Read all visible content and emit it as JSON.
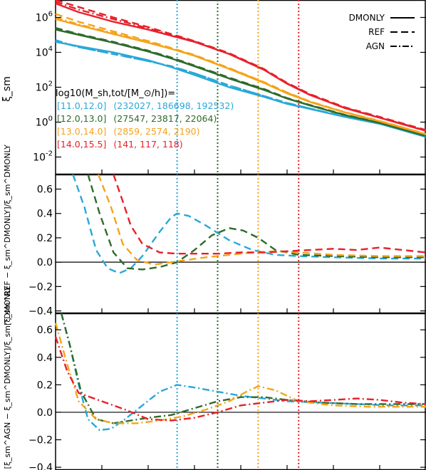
{
  "legend": {
    "entries": [
      {
        "label": "DMONLY",
        "dash": "solid"
      },
      {
        "label": "REF",
        "dash": "dashed"
      },
      {
        "label": "AGN",
        "dash": "dashdot"
      }
    ]
  },
  "panels": [
    {
      "id": "top",
      "ylabel": "ξ_sm",
      "yscale": "log",
      "ylim": [
        -3,
        7
      ],
      "yticks": [
        {
          "v": 6,
          "label": "10^6"
        },
        {
          "v": 4,
          "label": "10^4"
        },
        {
          "v": 2,
          "label": "10^2"
        },
        {
          "v": 0,
          "label": "10^0"
        },
        {
          "v": -2,
          "label": "10^-2"
        }
      ],
      "annotation": {
        "header": "log10(M_sh,tot/[M_⊙/h])=",
        "rows": [
          {
            "range": "[11.0,12.0]",
            "counts": "(232027, 186698, 192532)",
            "color": "#29a8d8"
          },
          {
            "range": "[12.0,13.0]",
            "counts": "(27547, 23817, 22064)",
            "color": "#2e6b2a"
          },
          {
            "range": "[13.0,14.0]",
            "counts": "(2859, 2574, 2190)",
            "color": "#f5a31a"
          },
          {
            "range": "[14.0,15.5]",
            "counts": "(141, 117, 118)",
            "color": "#e8202a"
          }
        ]
      }
    },
    {
      "id": "middle",
      "ylabel": "[ξ_sm^REF − ξ_sm^DMONLY]/ξ_sm^DMONLY",
      "yscale": "linear",
      "ylim": [
        -0.42,
        0.72
      ],
      "yticks": [
        {
          "v": 0.6,
          "label": "0.6"
        },
        {
          "v": 0.4,
          "label": "0.4"
        },
        {
          "v": 0.2,
          "label": "0.2"
        },
        {
          "v": 0.0,
          "label": "0.0"
        },
        {
          "v": -0.2,
          "label": "−0.2"
        },
        {
          "v": -0.4,
          "label": "−0.4"
        }
      ]
    },
    {
      "id": "bottom",
      "ylabel": "[ξ_sm^AGN − ξ_sm^DMONLY]/ξ_sm^DMONLY",
      "yscale": "linear",
      "ylim": [
        -0.42,
        0.72
      ],
      "yticks": [
        {
          "v": 0.6,
          "label": "0.6"
        },
        {
          "v": 0.4,
          "label": "0.4"
        },
        {
          "v": 0.2,
          "label": "0.2"
        },
        {
          "v": 0.0,
          "label": "0.0"
        },
        {
          "v": -0.2,
          "label": "−0.2"
        },
        {
          "v": -0.4,
          "label": "−0.4"
        }
      ]
    }
  ],
  "chart_data": {
    "type": "line",
    "xscale": "log",
    "xlim": [
      -2,
      1.2
    ],
    "xlabel": "",
    "xtick_labels": "none",
    "vlines": [
      {
        "x": -0.95,
        "color": "#29a8d8"
      },
      {
        "x": -0.6,
        "color": "#2e6b2a"
      },
      {
        "x": -0.25,
        "color": "#f5a31a"
      },
      {
        "x": 0.1,
        "color": "#e8202a"
      }
    ],
    "hlines": [
      {
        "panel": "middle",
        "y": 0
      },
      {
        "panel": "bottom",
        "y": 0
      }
    ],
    "series": [
      {
        "name": "[11.0,12.0] DMONLY",
        "panel": "top",
        "style": "solid",
        "color": "#29a8d8",
        "x": [
          -2,
          -1.8,
          -1.5,
          -1.2,
          -1,
          -0.8,
          -0.5,
          -0.2,
          0,
          0.2,
          0.5,
          0.8,
          1.2
        ],
        "y": [
          4.6,
          4.35,
          4.0,
          3.55,
          3.15,
          2.7,
          2.0,
          1.45,
          1.05,
          0.75,
          0.3,
          -0.1,
          -0.85
        ]
      },
      {
        "name": "[11.0,12.0] REF",
        "panel": "top",
        "style": "dashed",
        "color": "#29a8d8",
        "x": [
          -2,
          -1.8,
          -1.5,
          -1.2,
          -1,
          -0.8,
          -0.5,
          -0.2,
          0,
          0.2,
          0.5,
          0.8,
          1.2
        ],
        "y": [
          4.65,
          4.3,
          3.9,
          3.5,
          3.2,
          2.8,
          2.1,
          1.5,
          1.1,
          0.78,
          0.32,
          -0.08,
          -0.83
        ]
      },
      {
        "name": "[11.0,12.0] AGN",
        "panel": "top",
        "style": "dashdot",
        "color": "#29a8d8",
        "x": [
          -2,
          -1.8,
          -1.5,
          -1.2,
          -1,
          -0.8,
          -0.5,
          -0.2,
          0,
          0.2,
          0.5,
          0.8,
          1.2
        ],
        "y": [
          4.7,
          4.3,
          3.9,
          3.5,
          3.2,
          2.8,
          2.1,
          1.5,
          1.1,
          0.78,
          0.32,
          -0.08,
          -0.83
        ]
      },
      {
        "name": "[12.0,13.0] DMONLY",
        "panel": "top",
        "style": "solid",
        "color": "#2e6b2a",
        "x": [
          -2,
          -1.8,
          -1.5,
          -1.2,
          -1,
          -0.8,
          -0.5,
          -0.2,
          0,
          0.2,
          0.5,
          0.8,
          1.2
        ],
        "y": [
          5.3,
          5.0,
          4.55,
          4.05,
          3.65,
          3.2,
          2.5,
          1.85,
          1.35,
          0.95,
          0.4,
          -0.05,
          -0.8
        ]
      },
      {
        "name": "[12.0,13.0] REF",
        "panel": "top",
        "style": "dashed",
        "color": "#2e6b2a",
        "x": [
          -2,
          -1.8,
          -1.5,
          -1.2,
          -1,
          -0.8,
          -0.5,
          -0.2,
          0,
          0.2,
          0.5,
          0.8,
          1.2
        ],
        "y": [
          5.4,
          5.05,
          4.6,
          4.1,
          3.7,
          3.25,
          2.55,
          1.9,
          1.38,
          0.98,
          0.42,
          -0.03,
          -0.78
        ]
      },
      {
        "name": "[12.0,13.0] AGN",
        "panel": "top",
        "style": "dashdot",
        "color": "#2e6b2a",
        "x": [
          -2,
          -1.8,
          -1.5,
          -1.2,
          -1,
          -0.8,
          -0.5,
          -0.2,
          0,
          0.2,
          0.5,
          0.8,
          1.2
        ],
        "y": [
          5.35,
          5.02,
          4.57,
          4.07,
          3.67,
          3.22,
          2.52,
          1.87,
          1.36,
          0.96,
          0.41,
          -0.04,
          -0.79
        ]
      },
      {
        "name": "[13.0,14.0] DMONLY",
        "panel": "top",
        "style": "solid",
        "color": "#f5a31a",
        "x": [
          -2,
          -1.8,
          -1.5,
          -1.2,
          -1,
          -0.8,
          -0.5,
          -0.2,
          0,
          0.2,
          0.5,
          0.8,
          1.2
        ],
        "y": [
          5.9,
          5.55,
          5.05,
          4.55,
          4.2,
          3.8,
          3.05,
          2.25,
          1.65,
          1.15,
          0.55,
          0.05,
          -0.7
        ]
      },
      {
        "name": "[13.0,14.0] REF",
        "panel": "top",
        "style": "dashed",
        "color": "#f5a31a",
        "x": [
          -2,
          -1.8,
          -1.5,
          -1.2,
          -1,
          -0.8,
          -0.5,
          -0.2,
          0,
          0.2,
          0.5,
          0.8,
          1.2
        ],
        "y": [
          6.2,
          5.75,
          5.2,
          4.65,
          4.25,
          3.85,
          3.1,
          2.3,
          1.7,
          1.18,
          0.57,
          0.07,
          -0.68
        ]
      },
      {
        "name": "[13.0,14.0] AGN",
        "panel": "top",
        "style": "dashdot",
        "color": "#f5a31a",
        "x": [
          -2,
          -1.8,
          -1.5,
          -1.2,
          -1,
          -0.8,
          -0.5,
          -0.2,
          0,
          0.2,
          0.5,
          0.8,
          1.2
        ],
        "y": [
          6.0,
          5.6,
          5.1,
          4.6,
          4.22,
          3.82,
          3.08,
          2.28,
          1.68,
          1.17,
          0.56,
          0.06,
          -0.69
        ]
      },
      {
        "name": "[14.0,15.5] DMONLY",
        "panel": "top",
        "style": "solid",
        "color": "#e8202a",
        "x": [
          -2,
          -1.8,
          -1.5,
          -1.2,
          -1,
          -0.8,
          -0.5,
          -0.2,
          0,
          0.2,
          0.5,
          0.8,
          1.2
        ],
        "y": [
          6.8,
          6.3,
          5.75,
          5.3,
          4.95,
          4.6,
          3.9,
          3.0,
          2.2,
          1.55,
          0.8,
          0.25,
          -0.5
        ]
      },
      {
        "name": "[14.0,15.5] REF",
        "panel": "top",
        "style": "dashed",
        "color": "#e8202a",
        "x": [
          -2,
          -1.8,
          -1.5,
          -1.2,
          -1,
          -0.8,
          -0.5,
          -0.2,
          0,
          0.2,
          0.5,
          0.8,
          1.2
        ],
        "y": [
          7.0,
          6.6,
          6.0,
          5.45,
          5.05,
          4.65,
          3.95,
          3.05,
          2.25,
          1.6,
          0.85,
          0.3,
          -0.45
        ]
      },
      {
        "name": "[14.0,15.5] AGN",
        "panel": "top",
        "style": "dashdot",
        "color": "#e8202a",
        "x": [
          -2,
          -1.8,
          -1.5,
          -1.2,
          -1,
          -0.8,
          -0.5,
          -0.2,
          0,
          0.2,
          0.5,
          0.8,
          1.2
        ],
        "y": [
          6.9,
          6.45,
          5.9,
          5.38,
          5.0,
          4.62,
          3.92,
          3.02,
          2.22,
          1.57,
          0.82,
          0.27,
          -0.48
        ]
      },
      {
        "name": "[11.0,12.0] REF−DMONLY",
        "panel": "middle",
        "style": "dashed",
        "color": "#29a8d8",
        "x": [
          -1.85,
          -1.75,
          -1.65,
          -1.55,
          -1.45,
          -1.35,
          -1.25,
          -1.1,
          -1.0,
          -0.95,
          -0.85,
          -0.7,
          -0.5,
          -0.3,
          -0.1,
          0.1,
          0.4,
          0.8,
          1.2
        ],
        "y": [
          0.8,
          0.45,
          0.1,
          -0.05,
          -0.09,
          -0.05,
          0.05,
          0.25,
          0.37,
          0.4,
          0.38,
          0.3,
          0.18,
          0.1,
          0.06,
          0.05,
          0.04,
          0.03,
          0.03
        ]
      },
      {
        "name": "[12.0,13.0] REF−DMONLY",
        "panel": "middle",
        "style": "dashed",
        "color": "#2e6b2a",
        "x": [
          -1.72,
          -1.62,
          -1.5,
          -1.38,
          -1.25,
          -1.1,
          -0.95,
          -0.8,
          -0.65,
          -0.5,
          -0.38,
          -0.25,
          -0.1,
          0.1,
          0.4,
          0.8,
          1.2
        ],
        "y": [
          0.8,
          0.4,
          0.08,
          -0.05,
          -0.06,
          -0.04,
          0.0,
          0.1,
          0.22,
          0.28,
          0.26,
          0.2,
          0.1,
          0.06,
          0.05,
          0.04,
          0.04
        ]
      },
      {
        "name": "[13.0,14.0] REF−DMONLY",
        "panel": "middle",
        "style": "dashed",
        "color": "#f5a31a",
        "x": [
          -1.63,
          -1.52,
          -1.42,
          -1.3,
          -1.15,
          -1.0,
          -0.85,
          -0.7,
          -0.5,
          -0.3,
          -0.1,
          0.1,
          0.4,
          0.8,
          1.2
        ],
        "y": [
          0.8,
          0.45,
          0.15,
          0.02,
          -0.02,
          0.0,
          0.02,
          0.04,
          0.06,
          0.08,
          0.09,
          0.08,
          0.06,
          0.05,
          0.05
        ]
      },
      {
        "name": "[14.0,15.5] REF−DMONLY",
        "panel": "middle",
        "style": "dashed",
        "color": "#e8202a",
        "x": [
          -1.5,
          -1.42,
          -1.35,
          -1.25,
          -1.1,
          -0.95,
          -0.8,
          -0.6,
          -0.4,
          -0.2,
          0.0,
          0.2,
          0.4,
          0.6,
          0.8,
          1.0,
          1.2
        ],
        "y": [
          0.8,
          0.5,
          0.3,
          0.15,
          0.08,
          0.07,
          0.07,
          0.07,
          0.08,
          0.08,
          0.09,
          0.1,
          0.11,
          0.1,
          0.12,
          0.1,
          0.08
        ]
      },
      {
        "name": "[11.0,12.0] AGN−DMONLY",
        "panel": "bottom",
        "style": "dashdot",
        "color": "#29a8d8",
        "x": [
          -1.95,
          -1.88,
          -1.8,
          -1.72,
          -1.62,
          -1.52,
          -1.4,
          -1.25,
          -1.1,
          -0.95,
          -0.8,
          -0.6,
          -0.4,
          -0.2,
          0.0,
          0.3,
          0.6,
          0.9,
          1.2
        ],
        "y": [
          0.72,
          0.5,
          0.2,
          -0.05,
          -0.13,
          -0.12,
          -0.05,
          0.05,
          0.15,
          0.2,
          0.18,
          0.15,
          0.12,
          0.1,
          0.08,
          0.07,
          0.06,
          0.05,
          0.05
        ]
      },
      {
        "name": "[12.0,13.0] AGN−DMONLY",
        "panel": "bottom",
        "style": "dashdot",
        "color": "#2e6b2a",
        "x": [
          -1.95,
          -1.88,
          -1.78,
          -1.65,
          -1.5,
          -1.35,
          -1.2,
          -1.0,
          -0.8,
          -0.6,
          -0.4,
          -0.2,
          0.0,
          0.3,
          0.6,
          0.9,
          1.2
        ],
        "y": [
          0.72,
          0.5,
          0.15,
          -0.05,
          -0.08,
          -0.06,
          -0.04,
          -0.02,
          0.03,
          0.08,
          0.11,
          0.11,
          0.09,
          0.07,
          0.06,
          0.06,
          0.06
        ]
      },
      {
        "name": "[13.0,14.0] AGN−DMONLY",
        "panel": "bottom",
        "style": "dashdot",
        "color": "#f5a31a",
        "x": [
          -2.0,
          -1.9,
          -1.8,
          -1.65,
          -1.5,
          -1.3,
          -1.1,
          -0.9,
          -0.7,
          -0.5,
          -0.35,
          -0.25,
          -0.1,
          0.1,
          0.4,
          0.7,
          1.0,
          1.2
        ],
        "y": [
          0.65,
          0.35,
          0.08,
          -0.05,
          -0.08,
          -0.08,
          -0.06,
          -0.03,
          0.02,
          0.08,
          0.15,
          0.19,
          0.16,
          0.08,
          0.05,
          0.04,
          0.04,
          0.04
        ]
      },
      {
        "name": "[14.0,15.5] AGN−DMONLY",
        "panel": "bottom",
        "style": "dashdot",
        "color": "#e8202a",
        "x": [
          -2.0,
          -1.9,
          -1.8,
          -1.6,
          -1.4,
          -1.2,
          -1.0,
          -0.8,
          -0.6,
          -0.4,
          -0.2,
          0.0,
          0.2,
          0.4,
          0.6,
          0.8,
          1.0,
          1.2
        ],
        "y": [
          0.55,
          0.3,
          0.14,
          0.08,
          0.02,
          -0.05,
          -0.06,
          -0.04,
          0.0,
          0.05,
          0.07,
          0.09,
          0.08,
          0.09,
          0.1,
          0.09,
          0.07,
          0.06
        ]
      }
    ]
  }
}
